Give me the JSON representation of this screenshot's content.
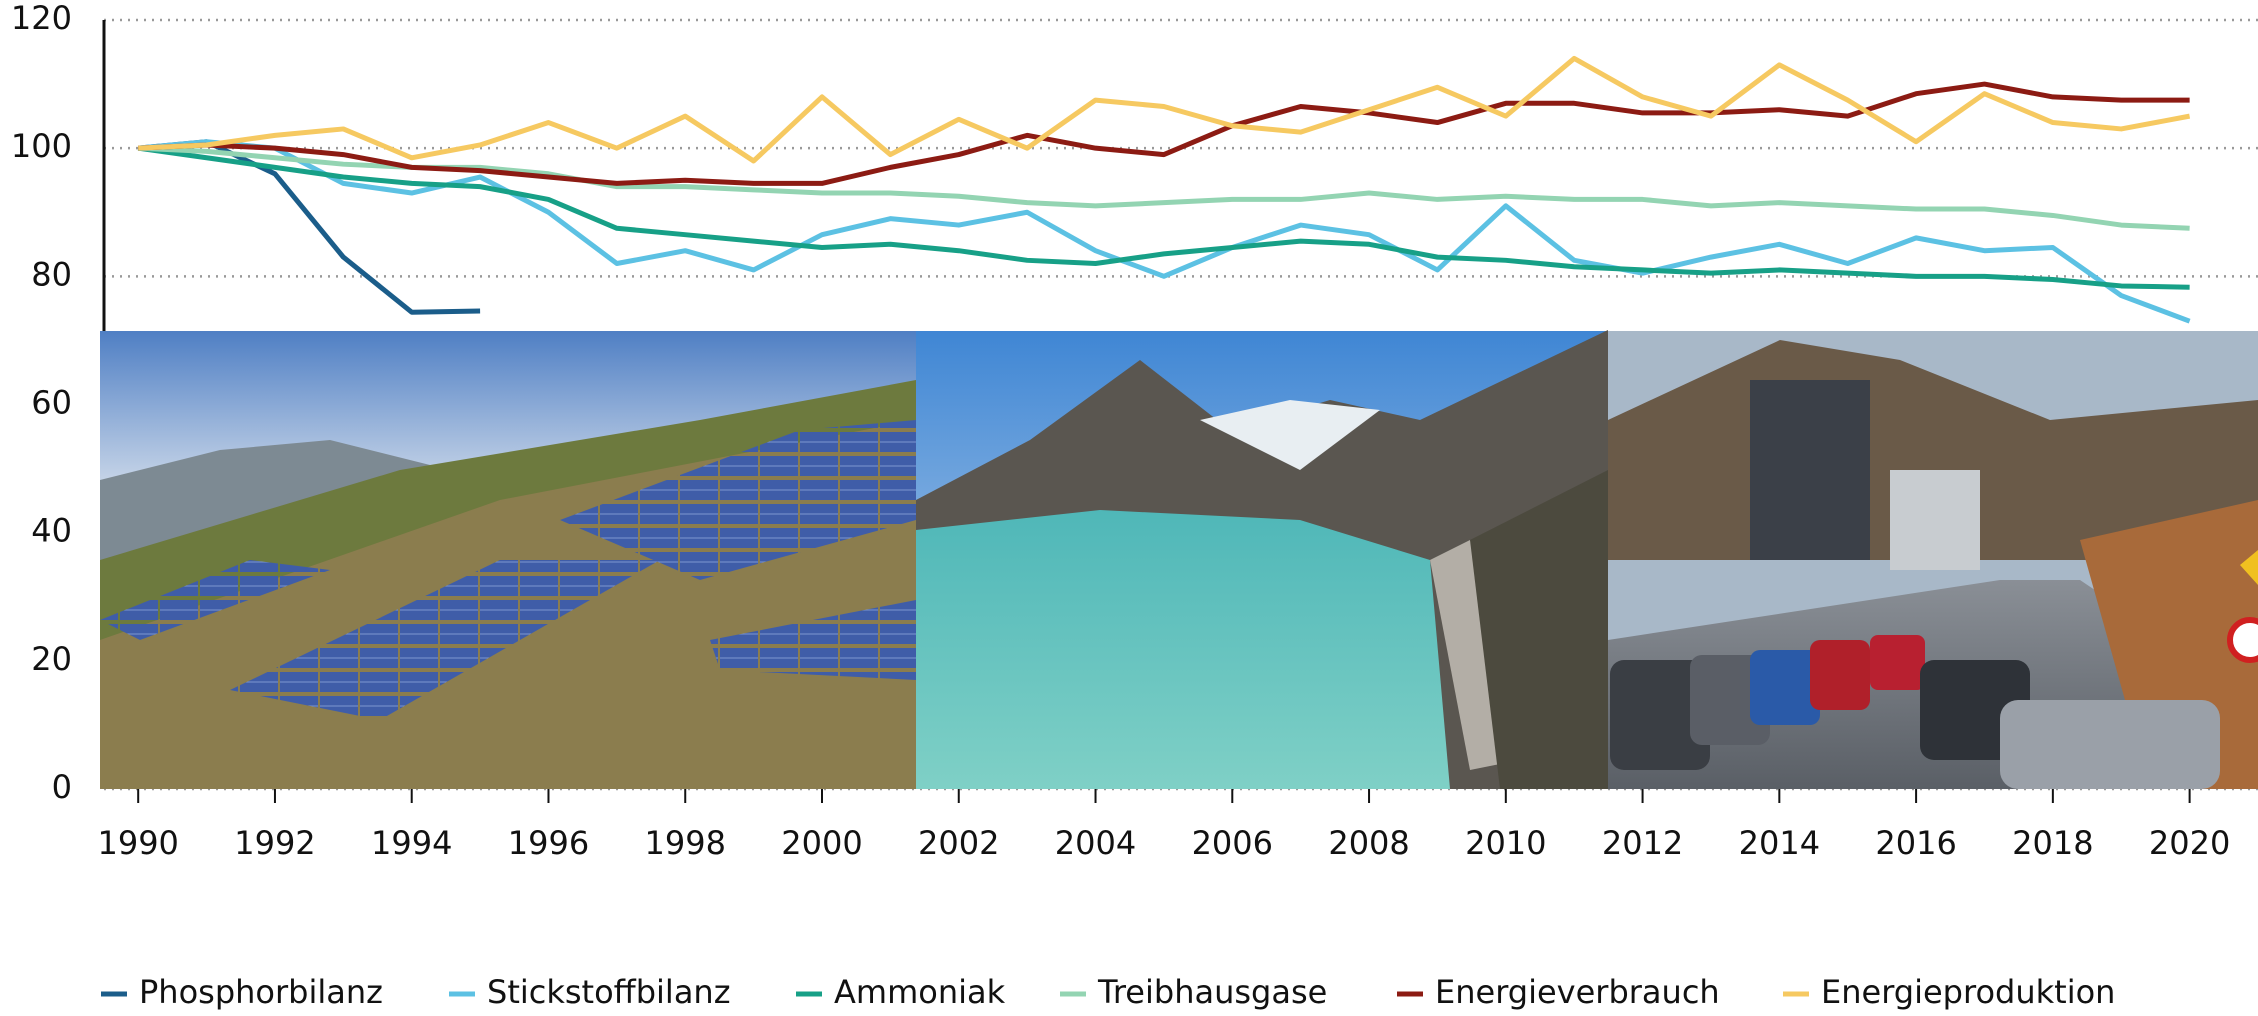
{
  "chart_data": {
    "type": "line",
    "x": [
      1990,
      1991,
      1992,
      1993,
      1994,
      1995,
      1996,
      1997,
      1998,
      1999,
      2000,
      2001,
      2002,
      2003,
      2004,
      2005,
      2006,
      2007,
      2008,
      2009,
      2010,
      2011,
      2012,
      2013,
      2014,
      2015,
      2016,
      2017,
      2018,
      2019,
      2020
    ],
    "series": [
      {
        "name": "Phosphorbilanz",
        "color": "#1b5d8a",
        "values": [
          100,
          101,
          96,
          83,
          74.4,
          74.6,
          null,
          null,
          null,
          null,
          null,
          null,
          null,
          null,
          null,
          null,
          null,
          null,
          null,
          null,
          null,
          null,
          null,
          null,
          null,
          null,
          null,
          null,
          null,
          null,
          null
        ]
      },
      {
        "name": "Stickstoffbilanz",
        "color": "#5cc1e3",
        "values": [
          100,
          101,
          100,
          94.5,
          93,
          95.5,
          90,
          82,
          84,
          81,
          86.5,
          89,
          88,
          90,
          84,
          80,
          84.5,
          88,
          86.5,
          81,
          91,
          82.5,
          80.5,
          83,
          85,
          82,
          86,
          84,
          84.5,
          77,
          73
        ]
      },
      {
        "name": "Ammoniak",
        "color": "#17a087",
        "values": [
          100,
          98.5,
          97,
          95.5,
          94.5,
          94,
          92,
          87.5,
          86.5,
          85.5,
          84.5,
          85,
          84,
          82.5,
          82,
          83.5,
          84.5,
          85.5,
          85,
          83,
          82.5,
          81.5,
          81,
          80.5,
          81,
          80.5,
          80,
          80,
          79.5,
          78.5,
          78.3
        ]
      },
      {
        "name": "Treibhausgase",
        "color": "#93d4b2",
        "values": [
          100,
          99.5,
          98.5,
          97.5,
          97,
          97,
          96,
          94,
          94,
          93.5,
          93,
          93,
          92.5,
          91.5,
          91,
          91.5,
          92,
          92,
          93,
          92,
          92.5,
          92,
          92,
          91,
          91.5,
          91,
          90.5,
          90.5,
          89.5,
          88,
          87.5
        ]
      },
      {
        "name": "Energieverbrauch",
        "color": "#8c1b13",
        "values": [
          100,
          100.5,
          100,
          99,
          97,
          96.5,
          95.5,
          94.5,
          95,
          94.5,
          94.5,
          97,
          99,
          102,
          100,
          99,
          103.5,
          106.5,
          105.5,
          104,
          107,
          107,
          105.5,
          105.5,
          106,
          105,
          108.5,
          110,
          108,
          107.5,
          107.5
        ]
      },
      {
        "name": "Energieproduktion",
        "color": "#f6c961",
        "values": [
          100,
          100.5,
          102,
          103,
          98.5,
          100.5,
          104,
          100,
          105,
          98,
          108,
          99,
          104.5,
          100,
          107.5,
          106.5,
          103.5,
          102.5,
          106,
          109.5,
          105,
          114,
          108,
          105,
          113,
          107.5,
          101,
          108.5,
          104,
          103,
          105
        ]
      }
    ],
    "xlim": [
      1989.5,
      2021
    ],
    "xticks": [
      1990,
      1992,
      1994,
      1996,
      1998,
      2000,
      2002,
      2004,
      2006,
      2008,
      2010,
      2012,
      2014,
      2016,
      2018,
      2020
    ],
    "ylim": [
      0,
      120
    ],
    "yticks": [
      0,
      20,
      40,
      60,
      80,
      100,
      120
    ],
    "grid": true
  }
}
